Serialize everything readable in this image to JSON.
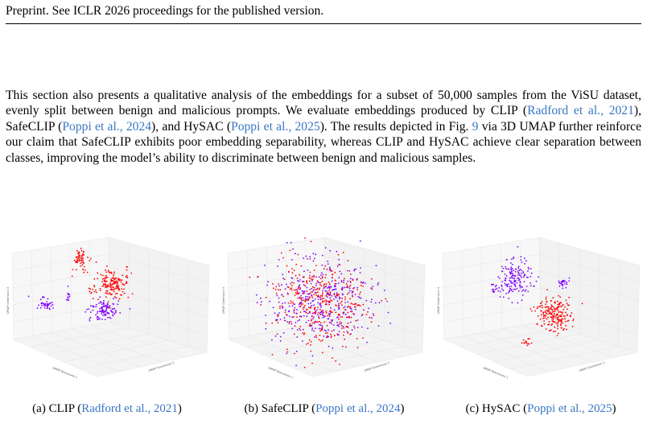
{
  "header": {
    "text": "Preprint. See ICLR 2026 proceedings for the published version."
  },
  "body": {
    "paragraph": [
      {
        "text": "This section also presents a qualitative analysis of the embeddings for a subset of 50,000 samples from the ViSU dataset, evenly split between benign and malicious prompts. We evaluate embeddings produced by CLIP ("
      },
      {
        "text": "Radford et al., 2021",
        "cite": true
      },
      {
        "text": "), SafeCLIP ("
      },
      {
        "text": "Poppi et al., 2024",
        "cite": true
      },
      {
        "text": "), and HySAC ("
      },
      {
        "text": "Poppi et al., 2025",
        "cite": true
      },
      {
        "text": "). The results depicted in Fig. "
      },
      {
        "text": "9",
        "cite": true
      },
      {
        "text": " via 3D UMAP further reinforce our claim that SafeCLIP exhibits poor embedding separability, whereas CLIP and HySAC achieve clear separation between classes, improving the model’s ability to discriminate between benign and malicious samples."
      }
    ]
  },
  "figure": {
    "panels": [
      {
        "caption": [
          {
            "text": "(a) CLIP ("
          },
          {
            "text": "Radford et al., 2021",
            "cite": true
          },
          {
            "text": ")"
          }
        ],
        "axis_labels": [
          "UMAP Dimension 1",
          "UMAP Dimension 2",
          "UMAP Dimension 3"
        ]
      },
      {
        "caption": [
          {
            "text": "(b) SafeCLIP ("
          },
          {
            "text": "Poppi et al., 2024",
            "cite": true
          },
          {
            "text": ")"
          }
        ],
        "axis_labels": [
          "UMAP Dimension 1",
          "UMAP Dimension 2",
          "UMAP Dimension 3"
        ]
      },
      {
        "caption": [
          {
            "text": "(c) HySAC ("
          },
          {
            "text": "Poppi et al., 2025",
            "cite": true
          },
          {
            "text": ")"
          }
        ],
        "axis_labels": [
          "UMAP Dimension 1",
          "UMAP Dimension 2",
          "UMAP Dimension 3"
        ]
      }
    ]
  }
}
